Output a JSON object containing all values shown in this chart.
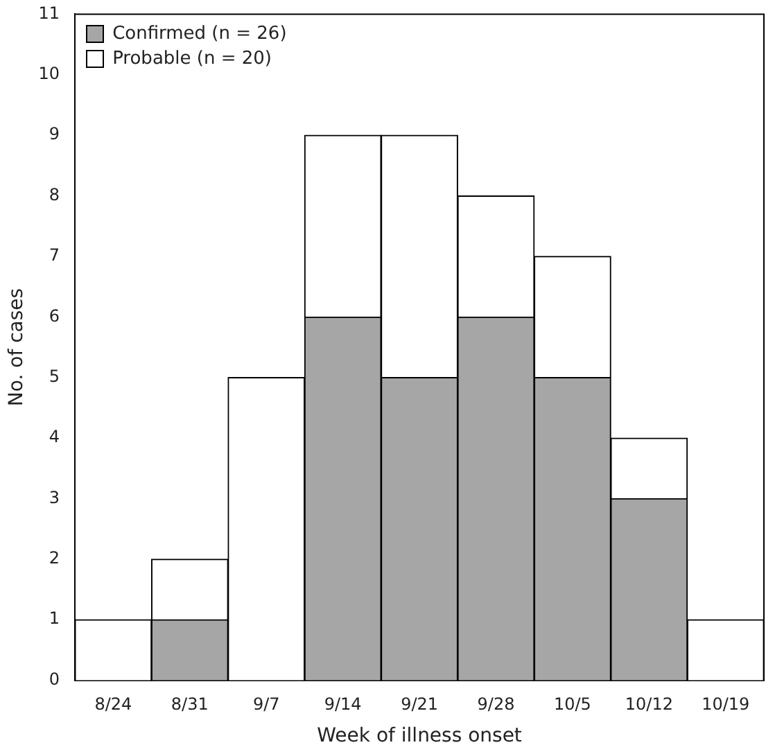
{
  "chart_data": {
    "type": "bar",
    "stacked": true,
    "xlabel": "Week of illness onset",
    "ylabel": "No. of cases",
    "categories": [
      "8/24",
      "8/31",
      "9/7",
      "9/14",
      "9/21",
      "9/28",
      "10/5",
      "10/12",
      "10/19"
    ],
    "series": [
      {
        "name": "Confirmed (n = 26)",
        "color": "#a6a6a6",
        "values": [
          0,
          1,
          0,
          6,
          5,
          6,
          5,
          3,
          0
        ]
      },
      {
        "name": "Probable (n = 20)",
        "color": "#ffffff",
        "values": [
          1,
          1,
          5,
          3,
          4,
          2,
          2,
          1,
          1
        ]
      }
    ],
    "ylim": [
      0,
      11
    ],
    "yticks": [
      0,
      1,
      2,
      3,
      4,
      5,
      6,
      7,
      8,
      9,
      10,
      11
    ],
    "grid": false,
    "legend": "top left"
  }
}
